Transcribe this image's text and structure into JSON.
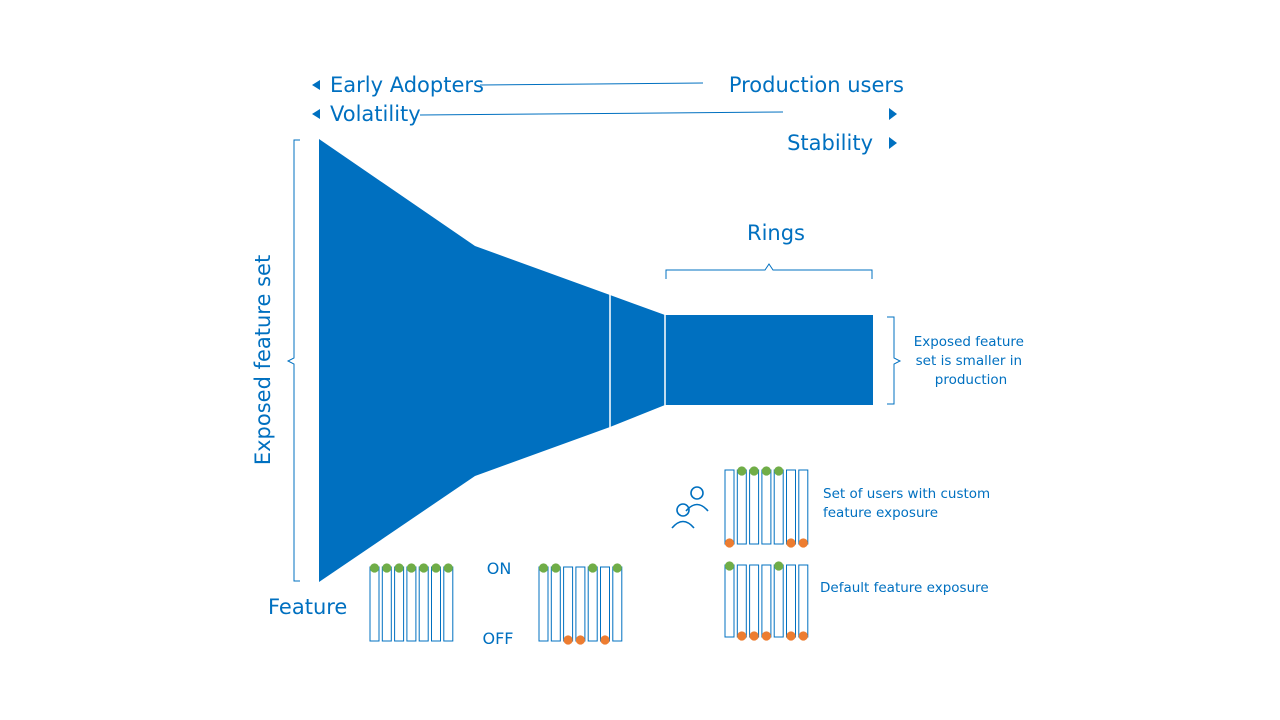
{
  "colors": {
    "accent": "#0070c0",
    "toggle_on": "#70ad47",
    "toggle_off": "#ed7d31",
    "background": "#ffffff"
  },
  "top_labels": {
    "early_adopters": "Early Adopters",
    "production_users": "Production users",
    "volatility": "Volatility",
    "stability": "Stability"
  },
  "funnel": {
    "rings_label": "Rings",
    "y_axis_label": "Exposed feature set",
    "feature_label": "Feature",
    "note_text": [
      "Exposed feature",
      "set is smaller in",
      "production"
    ]
  },
  "toggle_legend": {
    "on_label": "ON",
    "off_label": "OFF"
  },
  "custom_exposure": {
    "label_lines": [
      "Set of users with custom",
      "feature exposure"
    ],
    "icon": "users-icon"
  },
  "default_exposure": {
    "label": "Default feature exposure"
  },
  "toggle_groups": [
    {
      "name": "all-on-group",
      "states": [
        "on",
        "on",
        "on",
        "on",
        "on",
        "on",
        "on"
      ]
    },
    {
      "name": "mixed-group",
      "states": [
        "on",
        "on",
        "off",
        "off",
        "on",
        "off",
        "on"
      ]
    },
    {
      "name": "custom-exposure-group",
      "states": [
        "off",
        "on",
        "on",
        "on",
        "on",
        "off",
        "off"
      ]
    },
    {
      "name": "default-exposure-group",
      "states": [
        "on",
        "off",
        "off",
        "off",
        "on",
        "off",
        "off"
      ]
    }
  ]
}
